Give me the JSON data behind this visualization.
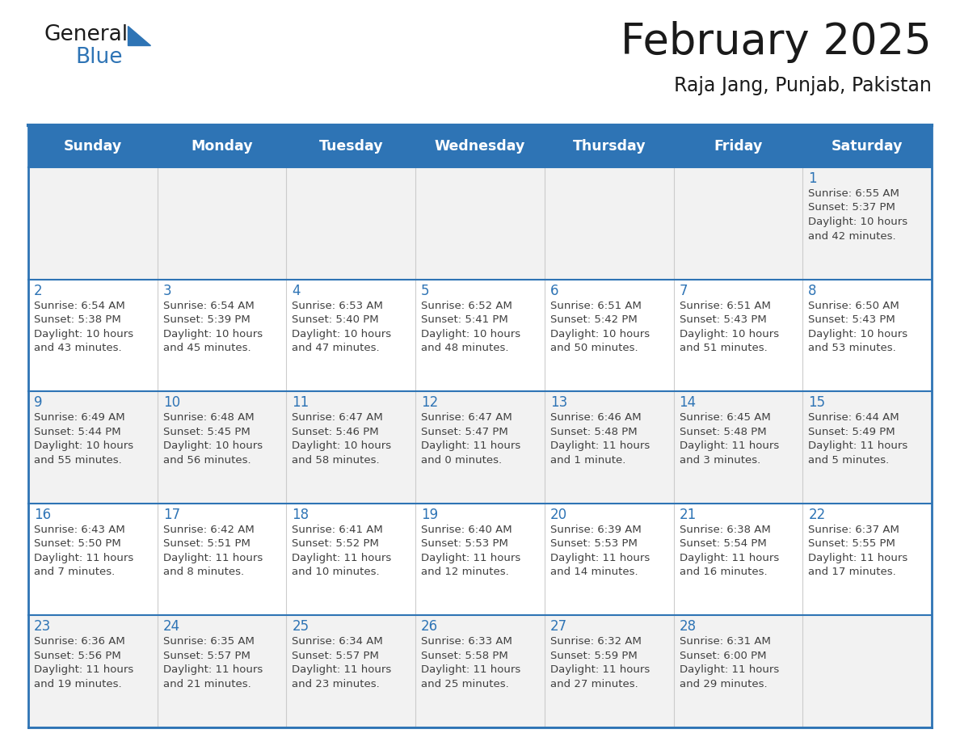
{
  "title": "February 2025",
  "subtitle": "Raja Jang, Punjab, Pakistan",
  "header_bg": "#2E74B5",
  "header_text_color": "#FFFFFF",
  "cell_bg_light": "#F2F2F2",
  "cell_bg_white": "#FFFFFF",
  "cell_text_color": "#404040",
  "day_number_color": "#2E74B5",
  "border_color": "#2E74B5",
  "days_of_week": [
    "Sunday",
    "Monday",
    "Tuesday",
    "Wednesday",
    "Thursday",
    "Friday",
    "Saturday"
  ],
  "weeks": [
    [
      {
        "day": "",
        "info": ""
      },
      {
        "day": "",
        "info": ""
      },
      {
        "day": "",
        "info": ""
      },
      {
        "day": "",
        "info": ""
      },
      {
        "day": "",
        "info": ""
      },
      {
        "day": "",
        "info": ""
      },
      {
        "day": "1",
        "info": "Sunrise: 6:55 AM\nSunset: 5:37 PM\nDaylight: 10 hours\nand 42 minutes."
      }
    ],
    [
      {
        "day": "2",
        "info": "Sunrise: 6:54 AM\nSunset: 5:38 PM\nDaylight: 10 hours\nand 43 minutes."
      },
      {
        "day": "3",
        "info": "Sunrise: 6:54 AM\nSunset: 5:39 PM\nDaylight: 10 hours\nand 45 minutes."
      },
      {
        "day": "4",
        "info": "Sunrise: 6:53 AM\nSunset: 5:40 PM\nDaylight: 10 hours\nand 47 minutes."
      },
      {
        "day": "5",
        "info": "Sunrise: 6:52 AM\nSunset: 5:41 PM\nDaylight: 10 hours\nand 48 minutes."
      },
      {
        "day": "6",
        "info": "Sunrise: 6:51 AM\nSunset: 5:42 PM\nDaylight: 10 hours\nand 50 minutes."
      },
      {
        "day": "7",
        "info": "Sunrise: 6:51 AM\nSunset: 5:43 PM\nDaylight: 10 hours\nand 51 minutes."
      },
      {
        "day": "8",
        "info": "Sunrise: 6:50 AM\nSunset: 5:43 PM\nDaylight: 10 hours\nand 53 minutes."
      }
    ],
    [
      {
        "day": "9",
        "info": "Sunrise: 6:49 AM\nSunset: 5:44 PM\nDaylight: 10 hours\nand 55 minutes."
      },
      {
        "day": "10",
        "info": "Sunrise: 6:48 AM\nSunset: 5:45 PM\nDaylight: 10 hours\nand 56 minutes."
      },
      {
        "day": "11",
        "info": "Sunrise: 6:47 AM\nSunset: 5:46 PM\nDaylight: 10 hours\nand 58 minutes."
      },
      {
        "day": "12",
        "info": "Sunrise: 6:47 AM\nSunset: 5:47 PM\nDaylight: 11 hours\nand 0 minutes."
      },
      {
        "day": "13",
        "info": "Sunrise: 6:46 AM\nSunset: 5:48 PM\nDaylight: 11 hours\nand 1 minute."
      },
      {
        "day": "14",
        "info": "Sunrise: 6:45 AM\nSunset: 5:48 PM\nDaylight: 11 hours\nand 3 minutes."
      },
      {
        "day": "15",
        "info": "Sunrise: 6:44 AM\nSunset: 5:49 PM\nDaylight: 11 hours\nand 5 minutes."
      }
    ],
    [
      {
        "day": "16",
        "info": "Sunrise: 6:43 AM\nSunset: 5:50 PM\nDaylight: 11 hours\nand 7 minutes."
      },
      {
        "day": "17",
        "info": "Sunrise: 6:42 AM\nSunset: 5:51 PM\nDaylight: 11 hours\nand 8 minutes."
      },
      {
        "day": "18",
        "info": "Sunrise: 6:41 AM\nSunset: 5:52 PM\nDaylight: 11 hours\nand 10 minutes."
      },
      {
        "day": "19",
        "info": "Sunrise: 6:40 AM\nSunset: 5:53 PM\nDaylight: 11 hours\nand 12 minutes."
      },
      {
        "day": "20",
        "info": "Sunrise: 6:39 AM\nSunset: 5:53 PM\nDaylight: 11 hours\nand 14 minutes."
      },
      {
        "day": "21",
        "info": "Sunrise: 6:38 AM\nSunset: 5:54 PM\nDaylight: 11 hours\nand 16 minutes."
      },
      {
        "day": "22",
        "info": "Sunrise: 6:37 AM\nSunset: 5:55 PM\nDaylight: 11 hours\nand 17 minutes."
      }
    ],
    [
      {
        "day": "23",
        "info": "Sunrise: 6:36 AM\nSunset: 5:56 PM\nDaylight: 11 hours\nand 19 minutes."
      },
      {
        "day": "24",
        "info": "Sunrise: 6:35 AM\nSunset: 5:57 PM\nDaylight: 11 hours\nand 21 minutes."
      },
      {
        "day": "25",
        "info": "Sunrise: 6:34 AM\nSunset: 5:57 PM\nDaylight: 11 hours\nand 23 minutes."
      },
      {
        "day": "26",
        "info": "Sunrise: 6:33 AM\nSunset: 5:58 PM\nDaylight: 11 hours\nand 25 minutes."
      },
      {
        "day": "27",
        "info": "Sunrise: 6:32 AM\nSunset: 5:59 PM\nDaylight: 11 hours\nand 27 minutes."
      },
      {
        "day": "28",
        "info": "Sunrise: 6:31 AM\nSunset: 6:00 PM\nDaylight: 11 hours\nand 29 minutes."
      },
      {
        "day": "",
        "info": ""
      }
    ]
  ],
  "logo_color_general": "#1a1a1a",
  "logo_color_blue": "#2E74B5",
  "fig_width": 11.88,
  "fig_height": 9.18,
  "dpi": 100
}
